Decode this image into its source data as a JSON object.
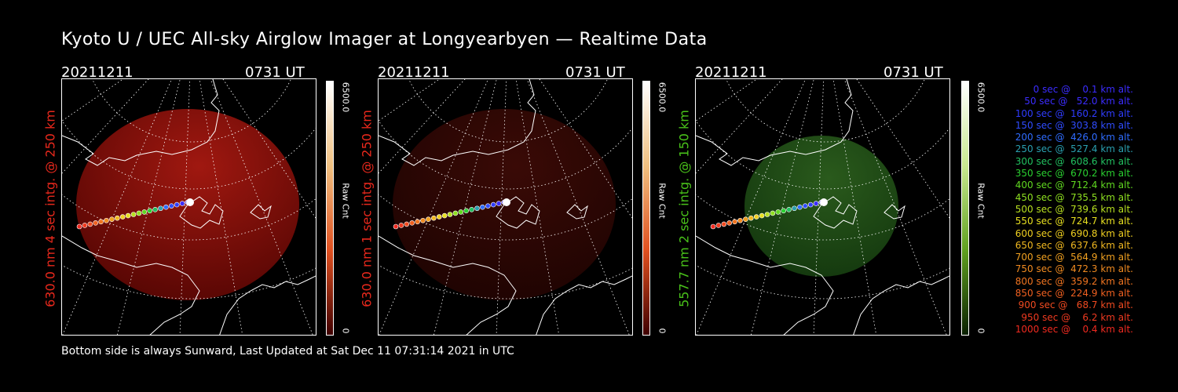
{
  "title": "Kyoto U / UEC All-sky Airglow Imager at Longyearbyen — Realtime Data",
  "footer": "Bottom side is always Sunward, Last Updated at Sat Dec 11 07:31:14 2021 in UTC",
  "colors": {
    "red": "#e8281c",
    "green": "#49c21a"
  },
  "panels": [
    {
      "date": "20211211",
      "time": "0731 UT",
      "side_label": "630.0 nm 4 sec intg. @ 250 km",
      "cbar_max": "6500.0",
      "cbar_min": "0",
      "cbar_label": "Raw Cnt",
      "tone": "red-bright"
    },
    {
      "date": "20211211",
      "time": "0731 UT",
      "side_label": "630.0 nm 1 sec intg. @ 250 km",
      "cbar_max": "6500.0",
      "cbar_min": "0",
      "cbar_label": "Raw Cnt",
      "tone": "red-dim"
    },
    {
      "date": "20211211",
      "time": "0731 UT",
      "side_label": "557.7 nm 2 sec intg. @ 150 km",
      "cbar_max": "6500.0",
      "cbar_min": "0",
      "cbar_label": "Raw Cnt",
      "tone": "green"
    }
  ],
  "legend": [
    {
      "text": "   0 sec @    0.1 km alt.",
      "color": "#3b2cff"
    },
    {
      "text": "  50 sec @   52.0 km alt.",
      "color": "#3b2cff"
    },
    {
      "text": " 100 sec @  160.2 km alt.",
      "color": "#2f3cff"
    },
    {
      "text": " 150 sec @  303.8 km alt.",
      "color": "#2f4cff"
    },
    {
      "text": " 200 sec @  426.0 km alt.",
      "color": "#2f6cff"
    },
    {
      "text": " 250 sec @  527.4 km alt.",
      "color": "#2aa0b0"
    },
    {
      "text": " 300 sec @  608.6 km alt.",
      "color": "#22c060"
    },
    {
      "text": " 350 sec @  670.2 km alt.",
      "color": "#2ad030"
    },
    {
      "text": " 400 sec @  712.4 km alt.",
      "color": "#60d820"
    },
    {
      "text": " 450 sec @  735.5 km alt.",
      "color": "#8ee020"
    },
    {
      "text": " 500 sec @  739.6 km alt.",
      "color": "#b8e020"
    },
    {
      "text": " 550 sec @  724.7 km alt.",
      "color": "#e8e020"
    },
    {
      "text": " 600 sec @  690.8 km alt.",
      "color": "#f0d020"
    },
    {
      "text": " 650 sec @  637.6 km alt.",
      "color": "#f0b820"
    },
    {
      "text": " 700 sec @  564.9 km alt.",
      "color": "#f0a020"
    },
    {
      "text": " 750 sec @  472.3 km alt.",
      "color": "#f08a20"
    },
    {
      "text": " 800 sec @  359.2 km alt.",
      "color": "#f07420"
    },
    {
      "text": " 850 sec @  224.9 km alt.",
      "color": "#f06020"
    },
    {
      "text": " 900 sec @   68.7 km alt.",
      "color": "#f04a20"
    },
    {
      "text": " 950 sec @    6.2 km alt.",
      "color": "#f03a20"
    },
    {
      "text": "1000 sec @    0.4 km alt.",
      "color": "#f02a20"
    }
  ]
}
